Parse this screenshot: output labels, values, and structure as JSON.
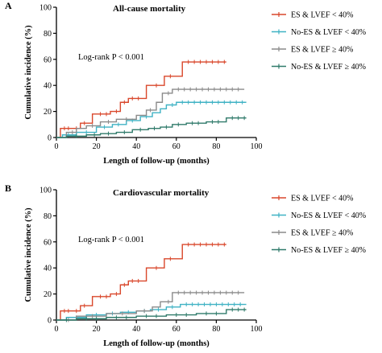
{
  "figure": {
    "colors": {
      "es_low": "#d9472b",
      "noes_low": "#3fb2c4",
      "es_high": "#8a8a8a",
      "noes_high": "#2f7a6a",
      "axis": "#000000"
    }
  },
  "chart_data": [
    {
      "type": "line",
      "step": true,
      "panel_label": "A",
      "title": "All-cause mortality",
      "xlabel": "Length of follow-up (months)",
      "ylabel": "Cumulative incidence (%)",
      "xlim": [
        0,
        100
      ],
      "ylim": [
        0,
        100
      ],
      "xticks": [
        "0",
        "20",
        "40",
        "60",
        "80",
        "100"
      ],
      "yticks": [
        "0",
        "20",
        "40",
        "60",
        "80",
        "100"
      ],
      "annotation": "Log-rank P < 0.001",
      "grid": false,
      "legend_position": "right",
      "series": [
        {
          "name": "ES & LVEF < 40%",
          "color": "#d9472b",
          "x": [
            0,
            2,
            8,
            12,
            18,
            27,
            32,
            36,
            45,
            47,
            54,
            63,
            85
          ],
          "y": [
            0,
            7,
            7,
            11,
            18,
            20,
            27,
            30,
            40,
            40,
            47,
            58,
            58
          ],
          "censored_x": [
            4,
            6,
            10,
            14,
            22,
            25,
            30,
            34,
            38,
            41,
            50,
            57,
            66,
            69,
            72,
            75,
            78,
            81,
            84
          ]
        },
        {
          "name": "No-ES & LVEF < 40%",
          "color": "#3fb2c4",
          "x": [
            0,
            3,
            10,
            20,
            28,
            35,
            42,
            48,
            52,
            55,
            60,
            95
          ],
          "y": [
            0,
            2,
            4,
            8,
            10,
            13,
            16,
            19,
            22,
            25,
            27,
            27
          ],
          "censored_x": [
            6,
            15,
            24,
            31,
            38,
            45,
            58,
            63,
            66,
            69,
            72,
            75,
            78,
            81,
            84,
            87,
            90,
            93
          ]
        },
        {
          "name": "ES & LVEF ≥ 40%",
          "color": "#8a8a8a",
          "x": [
            0,
            5,
            10,
            15,
            22,
            30,
            40,
            45,
            50,
            53,
            58,
            94
          ],
          "y": [
            0,
            4,
            7,
            9,
            12,
            14,
            17,
            21,
            27,
            34,
            37,
            37
          ],
          "censored_x": [
            8,
            18,
            26,
            35,
            47,
            56,
            61,
            64,
            67,
            70,
            73,
            76,
            79,
            82,
            85,
            88,
            91
          ]
        },
        {
          "name": "No-ES & LVEF ≥ 40%",
          "color": "#2f7a6a",
          "x": [
            0,
            5,
            15,
            22,
            30,
            38,
            46,
            52,
            58,
            65,
            75,
            85,
            95
          ],
          "y": [
            0,
            1,
            2,
            3,
            4,
            6,
            7,
            8,
            10,
            11,
            12,
            15,
            15
          ],
          "censored_x": [
            10,
            19,
            26,
            34,
            42,
            49,
            55,
            61,
            68,
            71,
            78,
            81,
            88,
            91,
            94
          ]
        }
      ]
    },
    {
      "type": "line",
      "step": true,
      "panel_label": "B",
      "title": "Cardiovascular mortality",
      "xlabel": "Length of follow-up (months)",
      "ylabel": "Cumulative incidence (%)",
      "xlim": [
        0,
        100
      ],
      "ylim": [
        0,
        100
      ],
      "xticks": [
        "0",
        "20",
        "40",
        "60",
        "80",
        "100"
      ],
      "yticks": [
        "0",
        "20",
        "40",
        "60",
        "80",
        "100"
      ],
      "annotation": "Log-rank P < 0.001",
      "grid": false,
      "legend_position": "right",
      "series": [
        {
          "name": "ES & LVEF < 40%",
          "color": "#d9472b",
          "x": [
            0,
            2,
            8,
            12,
            18,
            27,
            32,
            36,
            45,
            54,
            63,
            85
          ],
          "y": [
            0,
            7,
            7,
            11,
            18,
            20,
            27,
            30,
            40,
            47,
            58,
            58
          ],
          "censored_x": [
            4,
            6,
            10,
            14,
            22,
            25,
            30,
            34,
            38,
            41,
            50,
            57,
            66,
            69,
            72,
            75,
            78,
            81,
            84
          ]
        },
        {
          "name": "No-ES & LVEF < 40%",
          "color": "#3fb2c4",
          "x": [
            0,
            5,
            15,
            25,
            32,
            40,
            47,
            55,
            62,
            95
          ],
          "y": [
            0,
            2,
            4,
            5,
            6,
            7,
            8,
            10,
            12,
            12
          ],
          "censored_x": [
            10,
            20,
            28,
            36,
            44,
            51,
            58,
            65,
            68,
            71,
            74,
            77,
            80,
            83,
            86,
            89,
            92
          ]
        },
        {
          "name": "ES & LVEF ≥ 40%",
          "color": "#8a8a8a",
          "x": [
            0,
            10,
            25,
            40,
            48,
            52,
            58,
            94
          ],
          "y": [
            0,
            3,
            5,
            7,
            10,
            14,
            21,
            21
          ],
          "censored_x": [
            6,
            18,
            33,
            44,
            56,
            61,
            64,
            67,
            70,
            73,
            76,
            79,
            82,
            85,
            88,
            91
          ]
        },
        {
          "name": "No-ES & LVEF ≥ 40%",
          "color": "#2f7a6a",
          "x": [
            0,
            10,
            25,
            40,
            55,
            70,
            85,
            95
          ],
          "y": [
            0,
            1,
            2,
            3,
            4,
            5,
            8,
            8
          ],
          "censored_x": [
            5,
            15,
            20,
            30,
            35,
            45,
            50,
            60,
            65,
            75,
            80,
            88,
            91,
            94
          ]
        }
      ]
    }
  ]
}
